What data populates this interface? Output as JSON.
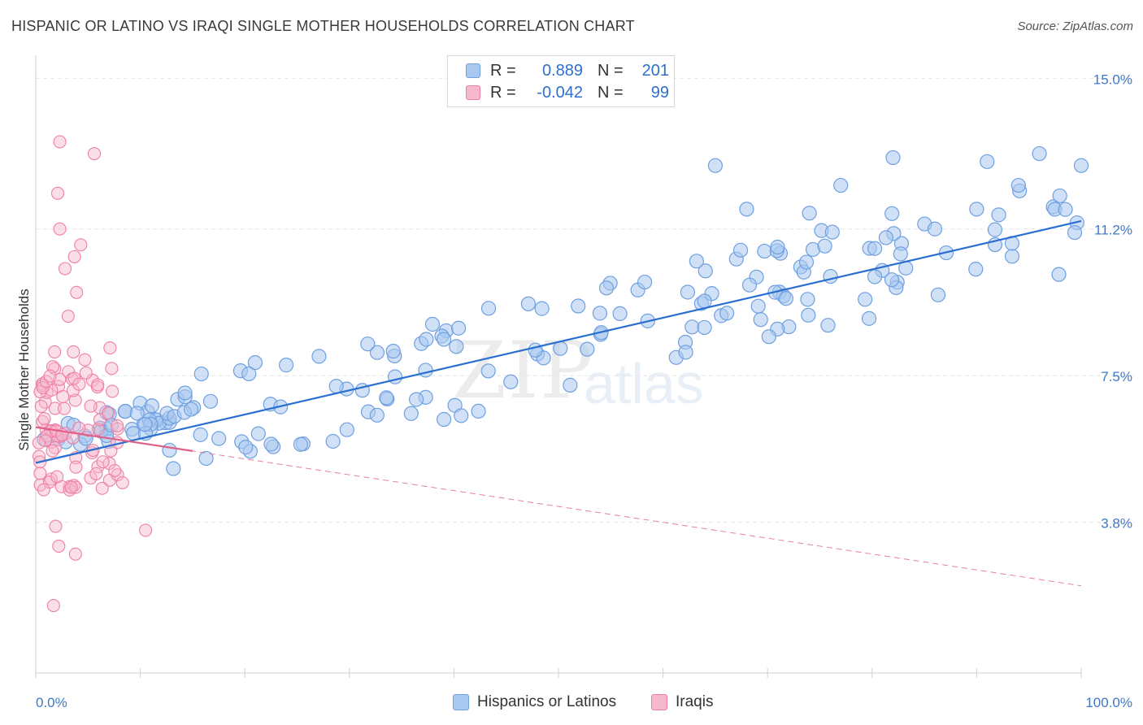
{
  "title": "HISPANIC OR LATINO VS IRAQI SINGLE MOTHER HOUSEHOLDS CORRELATION CHART",
  "source": "Source: ZipAtlas.com",
  "watermark": {
    "zip": "ZIP",
    "atlas": "atlas"
  },
  "colors": {
    "blue_fill": "#a9c8f0",
    "blue_stroke": "#6fa0e0",
    "blue_line": "#2a6fd0",
    "pink_fill": "#f6b8cc",
    "pink_stroke": "#ef7fa3",
    "pink_line": "#e0608a",
    "axis_text": "#3f78c8",
    "grid": "#e6e6e6"
  },
  "legend": {
    "rows": [
      {
        "r_label": "R =",
        "r_value": "0.889",
        "n_label": "N =",
        "n_value": "201"
      },
      {
        "r_label": "R =",
        "r_value": "-0.042",
        "n_label": "N =",
        "n_value": "99"
      }
    ]
  },
  "bottom_legend": {
    "blue": "Hispanics or Latinos",
    "pink": "Iraqis"
  },
  "chart_data": {
    "type": "scatter",
    "title": "HISPANIC OR LATINO VS IRAQI SINGLE MOTHER HOUSEHOLDS CORRELATION CHART",
    "ylabel": "Single Mother Households",
    "xlim": [
      0,
      100
    ],
    "ylim": [
      0,
      15.5
    ],
    "y_ticks": [
      3.8,
      7.5,
      11.2,
      15.0
    ],
    "y_tick_labels": [
      "3.8%",
      "7.5%",
      "11.2%",
      "15.0%"
    ],
    "x_tick_labels": [
      "0.0%",
      "100.0%"
    ],
    "grid": true,
    "legend_position": "top-center",
    "series": [
      {
        "name": "Hispanics or Latinos",
        "r": 0.889,
        "n": 201,
        "trend": {
          "x": [
            0,
            100
          ],
          "y": [
            5.3,
            11.4
          ]
        },
        "points": [
          [
            1,
            6.0
          ],
          [
            1.5,
            6.1
          ],
          [
            2,
            6.0
          ],
          [
            2.5,
            6.1
          ],
          [
            3,
            5.9
          ],
          [
            3.5,
            6.0
          ],
          [
            4,
            6.2
          ],
          [
            4.5,
            5.8
          ],
          [
            5,
            6.2
          ],
          [
            6,
            6.2
          ],
          [
            7,
            6.0
          ],
          [
            7.5,
            6.1
          ],
          [
            8,
            6.2
          ],
          [
            8.5,
            5.7
          ],
          [
            9,
            6.3
          ],
          [
            10,
            6.2
          ],
          [
            10.5,
            5.9
          ],
          [
            11,
            6.1
          ],
          [
            11.5,
            5.4
          ],
          [
            12,
            6.0
          ],
          [
            13,
            6.1
          ],
          [
            14,
            5.9
          ],
          [
            14.5,
            6.5
          ],
          [
            15,
            6.0
          ],
          [
            16,
            5.9
          ],
          [
            17,
            5.7
          ],
          [
            17.5,
            6.1
          ],
          [
            18,
            5.4
          ],
          [
            19,
            6.6
          ],
          [
            20,
            6.0
          ],
          [
            21,
            5.6
          ],
          [
            22,
            6.5
          ],
          [
            23,
            6.1
          ],
          [
            24,
            6.2
          ],
          [
            25,
            7.0
          ],
          [
            25.5,
            6.1
          ],
          [
            26,
            6.3
          ],
          [
            27,
            7.2
          ],
          [
            28,
            6.3
          ],
          [
            28.5,
            6.1
          ],
          [
            29,
            6.4
          ],
          [
            30,
            6.2
          ],
          [
            31,
            6.4
          ],
          [
            32,
            7.3
          ],
          [
            33,
            6.7
          ],
          [
            34,
            6.8
          ],
          [
            35,
            6.5
          ],
          [
            36,
            6.7
          ],
          [
            37,
            6.8
          ],
          [
            38,
            7.1
          ],
          [
            39,
            6.6
          ],
          [
            40,
            7.0
          ],
          [
            40.5,
            6.0
          ],
          [
            41,
            7.3
          ],
          [
            42,
            6.5
          ],
          [
            43,
            6.3
          ],
          [
            44,
            8.0
          ],
          [
            45,
            7.2
          ],
          [
            46,
            7.5
          ],
          [
            47,
            7.6
          ],
          [
            48,
            6.9
          ],
          [
            49,
            7.1
          ],
          [
            50,
            7.9
          ],
          [
            51,
            6.8
          ],
          [
            52,
            7.5
          ],
          [
            53,
            7.3
          ],
          [
            54,
            7.0
          ],
          [
            55,
            6.5
          ],
          [
            56,
            7.7
          ],
          [
            57,
            8.2
          ],
          [
            58,
            7.6
          ],
          [
            59,
            6.9
          ],
          [
            60,
            8.1
          ],
          [
            61,
            9.0
          ],
          [
            62,
            9.3
          ],
          [
            63,
            8.7
          ],
          [
            64,
            8.4
          ],
          [
            65,
            6.3
          ],
          [
            66,
            8.1
          ],
          [
            67,
            8.3
          ],
          [
            68,
            7.6
          ],
          [
            69,
            9.5
          ],
          [
            70,
            8.6
          ],
          [
            71,
            8.1
          ],
          [
            72,
            9.1
          ],
          [
            73,
            7.8
          ],
          [
            74,
            8.7
          ],
          [
            75,
            9.3
          ],
          [
            76,
            10.0
          ],
          [
            77,
            8.1
          ],
          [
            78,
            8.7
          ],
          [
            79,
            9.9
          ],
          [
            80,
            9.2
          ],
          [
            81,
            7.6
          ],
          [
            82,
            9.6
          ],
          [
            83,
            8.6
          ],
          [
            84,
            9.6
          ],
          [
            85,
            8.9
          ],
          [
            86,
            9.3
          ],
          [
            87,
            8.8
          ],
          [
            88,
            9.6
          ],
          [
            89,
            10.0
          ],
          [
            90,
            9.4
          ],
          [
            91,
            8.6
          ],
          [
            92,
            9.2
          ],
          [
            93,
            9.8
          ],
          [
            94,
            8.9
          ],
          [
            95,
            10.3
          ],
          [
            96,
            9.6
          ],
          [
            97,
            9.5
          ],
          [
            98,
            8.6
          ],
          [
            99,
            9.7
          ],
          [
            100,
            10.8
          ]
        ],
        "points_note_scale": "pct"
      },
      {
        "name": "Iraqis",
        "r": -0.042,
        "n": 99,
        "trend": {
          "x": [
            0,
            100
          ],
          "y": [
            6.2,
            2.2
          ]
        }
      }
    ]
  }
}
